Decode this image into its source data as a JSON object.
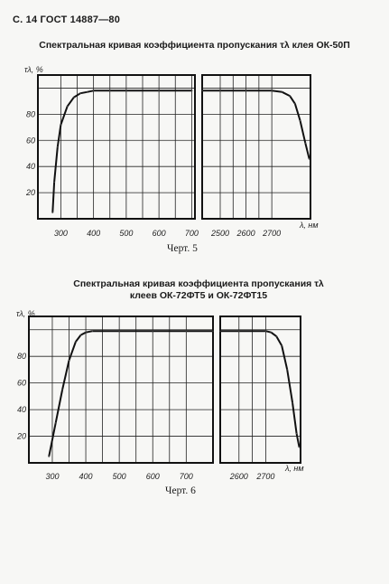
{
  "page": {
    "header": "С. 14 ГОСТ 14887—80"
  },
  "chart_data": [
    {
      "type": "line",
      "title": "Спектральная кривая коэффициента пропускания τλ клея ОК-50П",
      "caption": "Черт. 5",
      "ylabel": "τλ, %",
      "xlabel": "λ, нм",
      "ylim": [
        0,
        110
      ],
      "yticks": [
        "20",
        "40",
        "60",
        "80"
      ],
      "grid": true,
      "panels": [
        {
          "xlim": [
            230,
            710
          ],
          "xticks": [
            "300",
            "400",
            "500",
            "600",
            "700"
          ],
          "series": [
            {
              "x": [
                275,
                280,
                290,
                300,
                320,
                340,
                360,
                380,
                400,
                450,
                500,
                600,
                700
              ],
              "y": [
                5,
                28,
                55,
                72,
                86,
                93,
                96,
                97,
                98,
                98,
                98,
                98,
                98
              ]
            }
          ]
        },
        {
          "xlim": [
            2430,
            2850
          ],
          "xticks": [
            "2500",
            "2600",
            "2700"
          ],
          "series": [
            {
              "x": [
                2430,
                2500,
                2600,
                2700,
                2740,
                2770,
                2790,
                2810,
                2830,
                2845
              ],
              "y": [
                98,
                98,
                98,
                98,
                97,
                94,
                88,
                75,
                58,
                46
              ]
            }
          ]
        }
      ]
    },
    {
      "type": "line",
      "title": "Спектральная кривая коэффициента пропускания τλ клеев ОК-72ФТ5 и ОК-72ФТ15",
      "caption": "Черт. 6",
      "ylabel": "τλ, %",
      "xlabel": "λ, нм",
      "ylim": [
        0,
        110
      ],
      "yticks": [
        "20",
        "40",
        "60",
        "80"
      ],
      "grid": true,
      "panels": [
        {
          "xlim": [
            230,
            780
          ],
          "xticks": [
            "300",
            "400",
            "500",
            "600",
            "700"
          ],
          "series": [
            {
              "x": [
                290,
                310,
                330,
                350,
                370,
                385,
                400,
                420,
                500,
                600,
                700,
                780
              ],
              "y": [
                5,
                30,
                55,
                77,
                91,
                96,
                98,
                99,
                99,
                99,
                99,
                99
              ]
            }
          ]
        },
        {
          "xlim": [
            2530,
            2830
          ],
          "xticks": [
            "2600",
            "2700"
          ],
          "series": [
            {
              "x": [
                2530,
                2600,
                2700,
                2720,
                2740,
                2760,
                2780,
                2800,
                2815,
                2825
              ],
              "y": [
                99,
                99,
                99,
                98,
                95,
                88,
                70,
                45,
                22,
                12
              ]
            }
          ]
        }
      ]
    }
  ]
}
